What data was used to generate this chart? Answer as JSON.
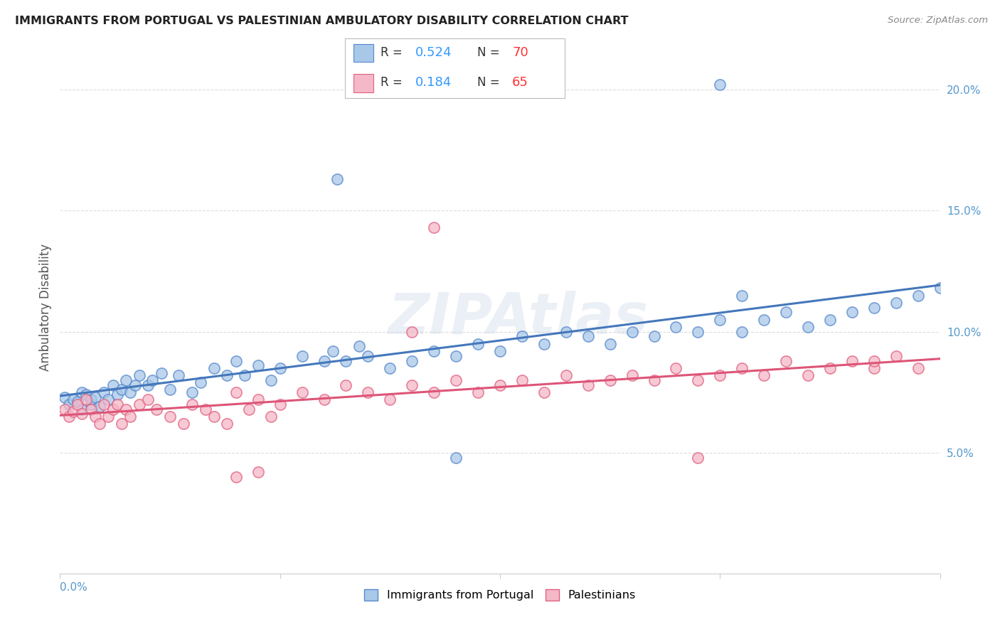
{
  "title": "IMMIGRANTS FROM PORTUGAL VS PALESTINIAN AMBULATORY DISABILITY CORRELATION CHART",
  "source": "Source: ZipAtlas.com",
  "ylabel": "Ambulatory Disability",
  "right_ytick_vals": [
    0.05,
    0.1,
    0.15,
    0.2
  ],
  "xlim": [
    0.0,
    0.2
  ],
  "ylim": [
    0.0,
    0.22
  ],
  "blue_face_color": "#a8c8e8",
  "blue_edge_color": "#5588cc",
  "pink_face_color": "#f5b8c8",
  "pink_edge_color": "#e06080",
  "blue_line_color": "#4477bb",
  "pink_line_color": "#dd5577",
  "legend_R_color": "#3399ff",
  "legend_N_color": "#ff3333",
  "R_blue": 0.524,
  "N_blue": 70,
  "R_pink": 0.184,
  "N_pink": 65,
  "watermark": "ZIPAtlas",
  "legend_items": [
    "Immigrants from Portugal",
    "Palestinians"
  ],
  "grid_color": "#dddddd",
  "blue_scatter_x": [
    0.001,
    0.002,
    0.003,
    0.004,
    0.005,
    0.005,
    0.006,
    0.007,
    0.007,
    0.008,
    0.009,
    0.01,
    0.011,
    0.012,
    0.013,
    0.014,
    0.015,
    0.016,
    0.017,
    0.018,
    0.02,
    0.021,
    0.023,
    0.025,
    0.027,
    0.03,
    0.032,
    0.035,
    0.038,
    0.04,
    0.042,
    0.045,
    0.048,
    0.05,
    0.055,
    0.06,
    0.062,
    0.065,
    0.068,
    0.07,
    0.075,
    0.08,
    0.085,
    0.09,
    0.095,
    0.1,
    0.105,
    0.11,
    0.115,
    0.12,
    0.125,
    0.13,
    0.135,
    0.14,
    0.145,
    0.15,
    0.155,
    0.16,
    0.165,
    0.17,
    0.175,
    0.18,
    0.185,
    0.19,
    0.195,
    0.2,
    0.063,
    0.09,
    0.15,
    0.155
  ],
  "blue_scatter_y": [
    0.073,
    0.07,
    0.072,
    0.071,
    0.075,
    0.068,
    0.074,
    0.07,
    0.072,
    0.073,
    0.069,
    0.075,
    0.072,
    0.078,
    0.074,
    0.076,
    0.08,
    0.075,
    0.078,
    0.082,
    0.078,
    0.08,
    0.083,
    0.076,
    0.082,
    0.075,
    0.079,
    0.085,
    0.082,
    0.088,
    0.082,
    0.086,
    0.08,
    0.085,
    0.09,
    0.088,
    0.092,
    0.088,
    0.094,
    0.09,
    0.085,
    0.088,
    0.092,
    0.09,
    0.095,
    0.092,
    0.098,
    0.095,
    0.1,
    0.098,
    0.095,
    0.1,
    0.098,
    0.102,
    0.1,
    0.105,
    0.1,
    0.105,
    0.108,
    0.102,
    0.105,
    0.108,
    0.11,
    0.112,
    0.115,
    0.118,
    0.163,
    0.048,
    0.202,
    0.115
  ],
  "pink_scatter_x": [
    0.001,
    0.002,
    0.003,
    0.004,
    0.005,
    0.006,
    0.007,
    0.008,
    0.009,
    0.01,
    0.011,
    0.012,
    0.013,
    0.014,
    0.015,
    0.016,
    0.018,
    0.02,
    0.022,
    0.025,
    0.028,
    0.03,
    0.033,
    0.035,
    0.038,
    0.04,
    0.043,
    0.045,
    0.048,
    0.05,
    0.055,
    0.06,
    0.065,
    0.07,
    0.075,
    0.08,
    0.085,
    0.09,
    0.095,
    0.1,
    0.105,
    0.11,
    0.115,
    0.12,
    0.125,
    0.13,
    0.135,
    0.14,
    0.145,
    0.15,
    0.155,
    0.16,
    0.165,
    0.17,
    0.175,
    0.18,
    0.185,
    0.19,
    0.195,
    0.185,
    0.04,
    0.045,
    0.08,
    0.085,
    0.145
  ],
  "pink_scatter_y": [
    0.068,
    0.065,
    0.067,
    0.07,
    0.066,
    0.072,
    0.068,
    0.065,
    0.062,
    0.07,
    0.065,
    0.068,
    0.07,
    0.062,
    0.068,
    0.065,
    0.07,
    0.072,
    0.068,
    0.065,
    0.062,
    0.07,
    0.068,
    0.065,
    0.062,
    0.075,
    0.068,
    0.072,
    0.065,
    0.07,
    0.075,
    0.072,
    0.078,
    0.075,
    0.072,
    0.078,
    0.075,
    0.08,
    0.075,
    0.078,
    0.08,
    0.075,
    0.082,
    0.078,
    0.08,
    0.082,
    0.08,
    0.085,
    0.08,
    0.082,
    0.085,
    0.082,
    0.088,
    0.082,
    0.085,
    0.088,
    0.085,
    0.09,
    0.085,
    0.088,
    0.04,
    0.042,
    0.1,
    0.143,
    0.048
  ]
}
